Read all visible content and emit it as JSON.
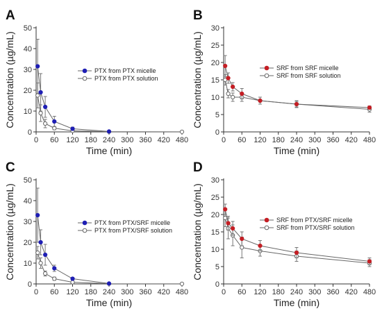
{
  "colors": {
    "treated": "#1f1fb4",
    "control": "#c41e24",
    "open": "#ffffff",
    "line": "#555555",
    "axis": "#333333"
  },
  "chart_data": [
    {
      "panel": "A",
      "type": "line",
      "xlabel": "Time (min)",
      "ylabel": "Concentration (µg/mL)",
      "xlim": [
        0,
        480
      ],
      "ylim": [
        0,
        50
      ],
      "xticks": [
        0,
        60,
        120,
        180,
        240,
        300,
        360,
        420,
        480
      ],
      "yticks": [
        0,
        10,
        20,
        30,
        40,
        50
      ],
      "legend_position": "middle-right",
      "series": [
        {
          "name": "PTX from PTX micelle",
          "marker": "filled",
          "color": "#1f1fb4",
          "x": [
            5,
            15,
            30,
            60,
            120,
            240
          ],
          "y": [
            31.5,
            19,
            12,
            5,
            1.5,
            0.2
          ],
          "err": [
            13,
            9,
            5,
            2.5,
            0.8,
            0.1
          ]
        },
        {
          "name": "PTX from PTX solution",
          "marker": "open",
          "color": "#555555",
          "x": [
            5,
            15,
            30,
            60,
            120,
            240,
            480
          ],
          "y": [
            17.5,
            9,
            4,
            1.8,
            0.5,
            0.1,
            0.05
          ],
          "err": [
            6,
            4,
            2,
            0.8,
            0.3,
            0.05,
            0.02
          ]
        }
      ]
    },
    {
      "panel": "B",
      "type": "line",
      "xlabel": "Time (min)",
      "ylabel": "Concentration (µg/mL)",
      "xlim": [
        0,
        480
      ],
      "ylim": [
        0,
        30
      ],
      "xticks": [
        0,
        60,
        120,
        180,
        240,
        300,
        360,
        420,
        480
      ],
      "yticks": [
        0,
        5,
        10,
        15,
        20,
        25,
        30
      ],
      "legend_position": "top-right",
      "series": [
        {
          "name": "SRF from SRF micelle",
          "marker": "filled",
          "color": "#c41e24",
          "x": [
            5,
            15,
            30,
            60,
            120,
            240,
            480
          ],
          "y": [
            19,
            15.5,
            13,
            11,
            9,
            8,
            7
          ],
          "err": [
            3,
            1.5,
            1.2,
            1.5,
            1,
            0.8,
            0.5
          ]
        },
        {
          "name": "SRF from SRF solution",
          "marker": "open",
          "color": "#555555",
          "x": [
            5,
            15,
            30,
            60,
            120,
            240,
            480
          ],
          "y": [
            15,
            11,
            10,
            10,
            9,
            8,
            6.5
          ],
          "err": [
            1.5,
            1.2,
            1.2,
            1.2,
            1,
            1,
            0.8
          ]
        }
      ]
    },
    {
      "panel": "C",
      "type": "line",
      "xlabel": "Time (min)",
      "ylabel": "Concentration (µg/mL)",
      "xlim": [
        0,
        480
      ],
      "ylim": [
        0,
        50
      ],
      "xticks": [
        0,
        60,
        120,
        180,
        240,
        300,
        360,
        420,
        480
      ],
      "yticks": [
        0,
        10,
        20,
        30,
        40,
        50
      ],
      "legend_position": "middle-right",
      "series": [
        {
          "name": "PTX from PTX/SRF micelle",
          "marker": "filled",
          "color": "#1f1fb4",
          "x": [
            5,
            15,
            30,
            60,
            120,
            240
          ],
          "y": [
            33,
            20,
            14,
            7.5,
            2.5,
            0.2
          ],
          "err": [
            13,
            6,
            5,
            1.5,
            0.6,
            0.1
          ]
        },
        {
          "name": "PTX from PTX/SRF solution",
          "marker": "open",
          "color": "#555555",
          "x": [
            5,
            15,
            30,
            60,
            120,
            240,
            480
          ],
          "y": [
            15,
            10,
            5,
            2.5,
            0.8,
            0.1,
            0.05
          ],
          "err": [
            3,
            2.5,
            1.2,
            0.8,
            0.4,
            0.05,
            0.02
          ]
        }
      ]
    },
    {
      "panel": "D",
      "type": "line",
      "xlabel": "Time (min)",
      "ylabel": "Concentration (µg/mL)",
      "xlim": [
        0,
        480
      ],
      "ylim": [
        0,
        30
      ],
      "xticks": [
        0,
        60,
        120,
        180,
        240,
        300,
        360,
        420,
        480
      ],
      "yticks": [
        0,
        5,
        10,
        15,
        20,
        25,
        30
      ],
      "legend_position": "top-right",
      "series": [
        {
          "name": "SRF from PTX/SRF micelle",
          "marker": "filled",
          "color": "#c41e24",
          "x": [
            5,
            15,
            30,
            60,
            120,
            240,
            480
          ],
          "y": [
            21.5,
            17.5,
            16,
            13,
            11,
            9,
            6.5
          ],
          "err": [
            1.5,
            2,
            2,
            2,
            1.5,
            1.5,
            1
          ]
        },
        {
          "name": "SRF from PTX/SRF solution",
          "marker": "open",
          "color": "#555555",
          "x": [
            5,
            15,
            30,
            60,
            120,
            240,
            480
          ],
          "y": [
            19,
            16,
            14,
            10.5,
            9.5,
            8,
            6
          ],
          "err": [
            2.5,
            3,
            3,
            3,
            1.5,
            1.5,
            1
          ]
        }
      ]
    }
  ]
}
